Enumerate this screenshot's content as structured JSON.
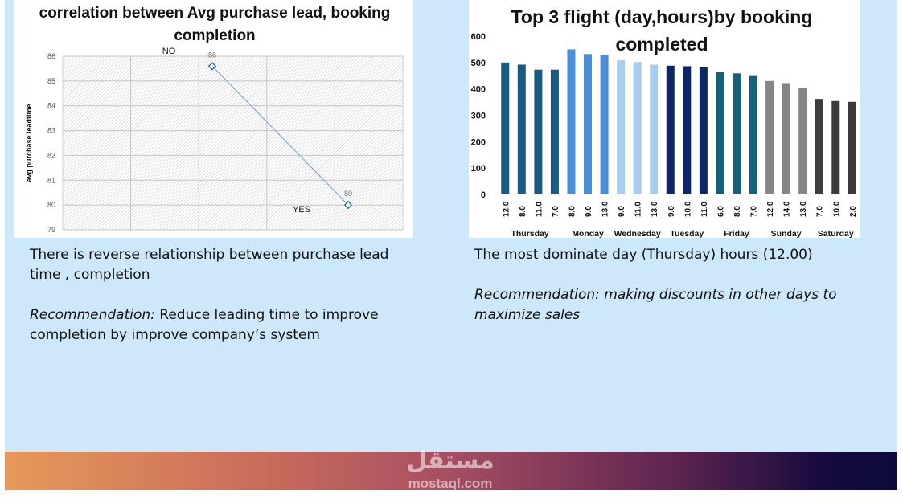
{
  "left_text": {
    "observation": "There is reverse relationship between purchase lead time , completion",
    "rec_label": "Recommendation:",
    "rec_body": " Reduce leading time to improve completion by improve company’s system"
  },
  "right_text": {
    "observation": "The most dominate day (Thursday) hours (12.00)",
    "recommendation": "Recommendation: making discounts in other days to maximize sales"
  },
  "watermark": {
    "arabic": "مستقل",
    "latin": "mostaql.com"
  },
  "chart_data": [
    {
      "type": "line",
      "title": "correlation between Avg purchase lead, booking completion",
      "ylabel": "avg purchase leadtime",
      "ylim": [
        79,
        86
      ],
      "yticks": [
        79,
        80,
        81,
        82,
        83,
        84,
        85,
        86
      ],
      "categories": [
        "NO",
        "YES"
      ],
      "values": [
        85.6,
        80
      ],
      "data_labels": [
        "86",
        "80"
      ],
      "grid": true,
      "color": "#8aaed6"
    },
    {
      "type": "bar",
      "title": "Top 3 flight (day,hours)by booking completed",
      "ylim": [
        0,
        600
      ],
      "yticks": [
        0,
        100,
        200,
        300,
        400,
        500,
        600
      ],
      "groups": [
        {
          "day": "Thursday",
          "color": "#1b5b82",
          "hours": [
            "12.0",
            "8.0",
            "11.0",
            "7.0"
          ],
          "values": [
            500,
            492,
            473,
            473
          ]
        },
        {
          "day": "Monday",
          "color": "#4a8fd6",
          "hours": [
            "8.0",
            "9.0",
            "13.0"
          ],
          "values": [
            550,
            532,
            529
          ]
        },
        {
          "day": "Wednesday",
          "color": "#a8cdef",
          "hours": [
            "9.0",
            "11.0",
            "13.0"
          ],
          "values": [
            509,
            502,
            492
          ]
        },
        {
          "day": "Tuesday",
          "color": "#0d2766",
          "hours": [
            "9.0",
            "10.0",
            "11.0"
          ],
          "values": [
            488,
            486,
            483
          ]
        },
        {
          "day": "Friday",
          "color": "#17607a",
          "hours": [
            "6.0",
            "8.0",
            "7.0"
          ],
          "values": [
            465,
            459,
            452
          ]
        },
        {
          "day": "Sunday",
          "color": "#858585",
          "hours": [
            "12.0",
            "14.0",
            "13.0"
          ],
          "values": [
            430,
            422,
            405
          ]
        },
        {
          "day": "Saturday",
          "color": "#3b3b3b",
          "hours": [
            "7.0",
            "10.0",
            "2.0"
          ],
          "values": [
            362,
            354,
            351
          ]
        }
      ]
    }
  ]
}
